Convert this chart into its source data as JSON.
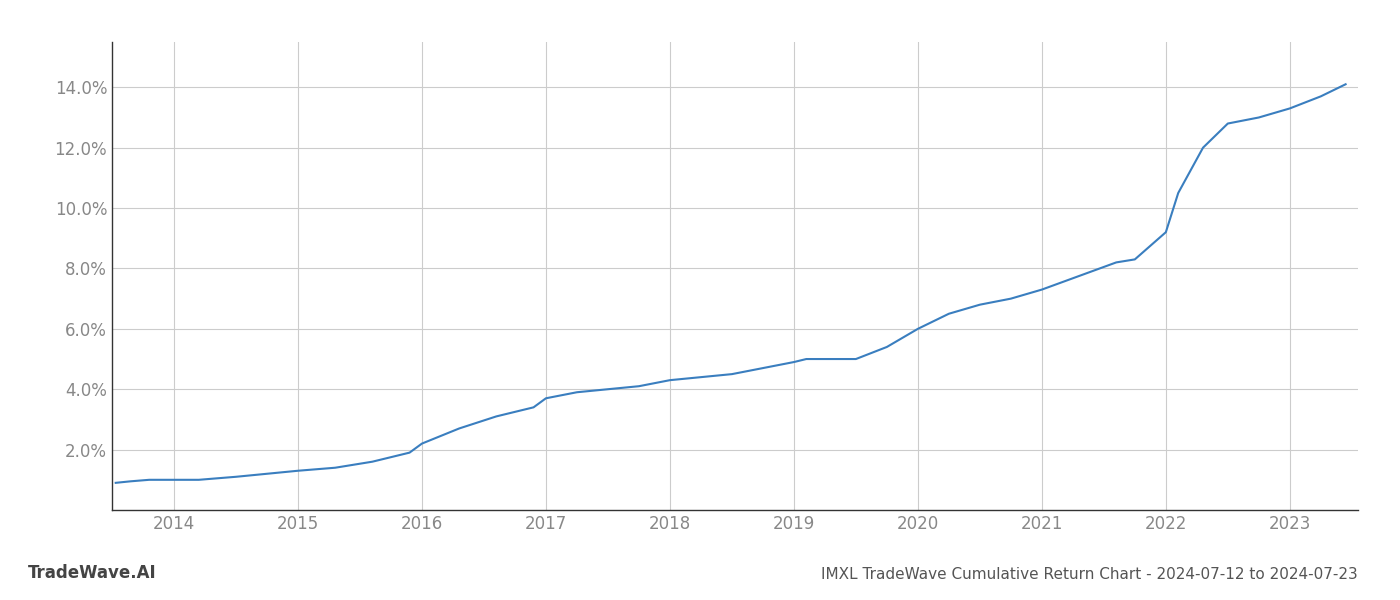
{
  "x_values": [
    2013.53,
    2013.65,
    2013.8,
    2014.0,
    2014.2,
    2014.5,
    2014.75,
    2015.0,
    2015.3,
    2015.6,
    2015.9,
    2016.0,
    2016.3,
    2016.6,
    2016.9,
    2017.0,
    2017.25,
    2017.5,
    2017.75,
    2018.0,
    2018.25,
    2018.5,
    2018.75,
    2019.0,
    2019.1,
    2019.25,
    2019.5,
    2019.75,
    2020.0,
    2020.25,
    2020.5,
    2020.75,
    2021.0,
    2021.2,
    2021.4,
    2021.6,
    2021.75,
    2022.0,
    2022.1,
    2022.3,
    2022.5,
    2022.75,
    2023.0,
    2023.25,
    2023.45
  ],
  "y_values": [
    0.009,
    0.0095,
    0.01,
    0.01,
    0.01,
    0.011,
    0.012,
    0.013,
    0.014,
    0.016,
    0.019,
    0.022,
    0.027,
    0.031,
    0.034,
    0.037,
    0.039,
    0.04,
    0.041,
    0.043,
    0.044,
    0.045,
    0.047,
    0.049,
    0.05,
    0.05,
    0.05,
    0.054,
    0.06,
    0.065,
    0.068,
    0.07,
    0.073,
    0.076,
    0.079,
    0.082,
    0.083,
    0.092,
    0.105,
    0.12,
    0.128,
    0.13,
    0.133,
    0.137,
    0.141
  ],
  "line_color": "#3a7ebf",
  "line_width": 1.5,
  "title": "IMXL TradeWave Cumulative Return Chart - 2024-07-12 to 2024-07-23",
  "watermark": "TradeWave.AI",
  "xlim": [
    2013.5,
    2023.55
  ],
  "ylim": [
    0.0,
    0.155
  ],
  "xticks": [
    2014,
    2015,
    2016,
    2017,
    2018,
    2019,
    2020,
    2021,
    2022,
    2023
  ],
  "yticks": [
    0.02,
    0.04,
    0.06,
    0.08,
    0.1,
    0.12,
    0.14
  ],
  "grid_color": "#cccccc",
  "background_color": "#ffffff",
  "tick_label_color": "#888888",
  "title_color": "#555555",
  "watermark_color": "#444444",
  "title_fontsize": 11,
  "tick_fontsize": 12,
  "watermark_fontsize": 12
}
